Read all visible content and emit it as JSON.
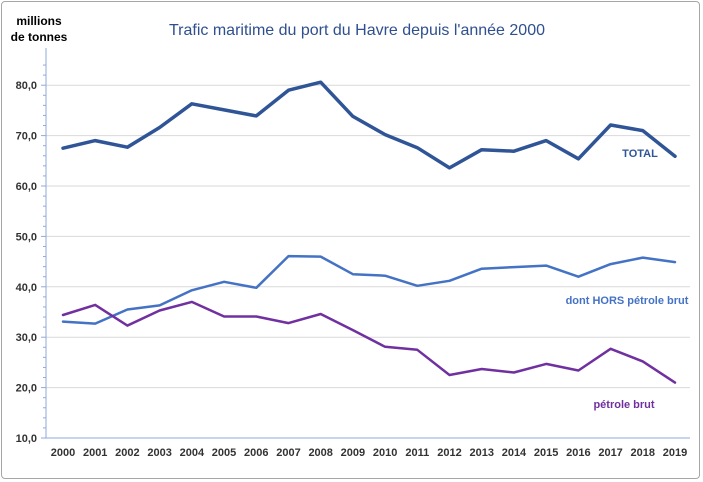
{
  "chart_data": {
    "type": "line",
    "title": "Trafic maritime du port du Havre depuis l'année 2000",
    "ylabel_line1": "millions",
    "ylabel_line2": "de tonnes",
    "xlabel": "",
    "ylim": [
      10,
      85
    ],
    "yticks": [
      "10,0",
      "20,0",
      "30,0",
      "40,0",
      "50,0",
      "60,0",
      "70,0",
      "80,0"
    ],
    "ytick_values": [
      10,
      20,
      30,
      40,
      50,
      60,
      70,
      80
    ],
    "grid": true,
    "x": [
      "2000",
      "2001",
      "2002",
      "2003",
      "2004",
      "2005",
      "2006",
      "2007",
      "2008",
      "2009",
      "2010",
      "2011",
      "2012",
      "2013",
      "2014",
      "2015",
      "2016",
      "2017",
      "2018",
      "2019"
    ],
    "series": [
      {
        "name": "TOTAL",
        "color": "#2f5597",
        "values": [
          67.5,
          69.0,
          67.7,
          71.6,
          76.3,
          75.1,
          73.9,
          79.0,
          80.6,
          73.8,
          70.2,
          67.6,
          63.6,
          67.2,
          66.9,
          69.0,
          65.4,
          72.1,
          71.0,
          65.9
        ]
      },
      {
        "name": "dont HORS pétrole brut",
        "color": "#4472c4",
        "values": [
          33.1,
          32.7,
          35.5,
          36.3,
          39.3,
          41.0,
          39.8,
          46.1,
          46.0,
          42.5,
          42.2,
          40.2,
          41.2,
          43.6,
          43.9,
          44.2,
          42.0,
          44.5,
          45.8,
          44.9
        ]
      },
      {
        "name": "pétrole brut",
        "color": "#7030a0",
        "values": [
          34.4,
          36.4,
          32.3,
          35.3,
          37.0,
          34.1,
          34.1,
          32.8,
          34.6,
          31.4,
          28.1,
          27.5,
          22.5,
          23.7,
          23.0,
          24.7,
          23.4,
          27.7,
          25.2,
          21.0
        ]
      }
    ]
  }
}
